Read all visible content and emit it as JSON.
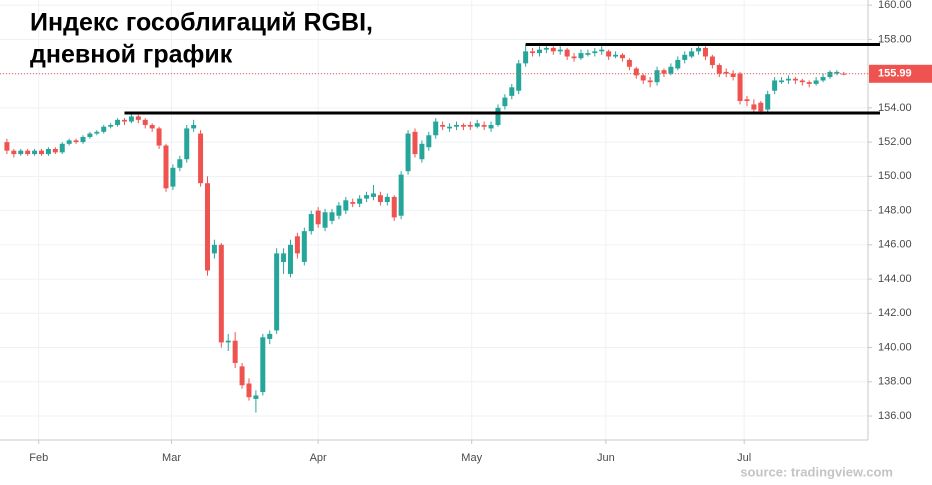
{
  "chart_data": {
    "type": "candlestick",
    "title_lines": [
      "Индекс гособлигаций RGBI,",
      "дневной график"
    ],
    "source": "source: tradingview.com",
    "up_color": "#26a69a",
    "down_color": "#ef5350",
    "open": [
      152.0,
      151.5,
      151.3,
      151.5,
      151.3,
      151.5,
      151.3,
      151.6,
      151.4,
      151.9,
      152.1,
      152.0,
      152.3,
      152.5,
      152.6,
      152.9,
      153.0,
      153.3,
      153.2,
      153.5,
      153.3,
      153.0,
      152.8,
      151.8,
      149.4,
      150.5,
      151.0,
      152.8,
      152.5,
      149.6,
      145.5,
      146.0,
      140.3,
      140.4,
      138.9,
      137.9,
      137.0,
      137.4,
      140.5,
      141.0,
      145.0,
      144.3,
      146.5,
      145.0,
      146.8,
      148.0,
      147.0,
      147.4,
      147.7,
      148.0,
      148.5,
      148.4,
      148.7,
      148.8,
      148.9,
      148.5,
      148.8,
      147.7,
      150.3,
      152.6,
      151.0,
      151.7,
      152.4,
      153.0,
      152.8,
      152.9,
      153.0,
      153.0,
      152.9,
      153.0,
      152.8,
      153.0,
      154.1,
      154.7,
      155.0,
      156.6,
      157.3,
      157.2,
      157.4,
      157.5,
      157.3,
      157.4,
      157.0,
      156.9,
      157.1,
      157.2,
      157.3,
      157.3,
      157.0,
      157.1,
      156.8,
      156.3,
      155.9,
      155.6,
      155.5,
      156.2,
      156.0,
      156.3,
      156.8,
      157.0,
      157.3,
      157.5,
      157.0,
      156.5,
      156.1,
      156.0,
      156.0,
      154.5,
      154.2,
      154.3,
      153.9,
      155.0,
      155.5,
      155.6,
      155.7,
      155.6,
      155.5,
      155.4,
      155.6,
      155.8,
      156.0,
      156.0
    ],
    "high": [
      152.2,
      151.6,
      151.6,
      151.6,
      151.6,
      151.6,
      151.7,
      151.7,
      152.0,
      152.2,
      152.2,
      152.4,
      152.6,
      152.7,
      153.0,
      153.1,
      153.4,
      153.4,
      153.7,
      153.6,
      153.4,
      153.1,
      152.9,
      151.9,
      150.7,
      151.2,
      153.0,
      153.3,
      152.7,
      150.0,
      146.3,
      146.1,
      140.8,
      140.9,
      139.1,
      138.2,
      137.5,
      140.8,
      141.0,
      145.8,
      145.8,
      146.3,
      146.7,
      147.0,
      148.0,
      148.2,
      148.1,
      148.1,
      148.5,
      148.8,
      148.7,
      148.9,
      149.1,
      149.5,
      149.1,
      149.0,
      148.9,
      150.3,
      152.7,
      152.8,
      152.1,
      152.6,
      153.4,
      153.2,
      153.1,
      153.2,
      153.1,
      153.2,
      153.3,
      153.2,
      153.2,
      154.2,
      154.8,
      155.4,
      156.8,
      157.7,
      157.5,
      157.6,
      157.7,
      157.6,
      157.6,
      157.5,
      157.2,
      157.4,
      157.4,
      157.5,
      157.6,
      157.4,
      157.3,
      157.2,
      156.9,
      156.4,
      156.0,
      155.8,
      156.4,
      156.3,
      156.6,
      157.0,
      157.3,
      157.5,
      157.7,
      157.6,
      157.1,
      156.6,
      156.3,
      156.2,
      156.1,
      154.7,
      154.5,
      154.4,
      155.0,
      155.8,
      155.8,
      155.9,
      155.8,
      155.7,
      155.6,
      155.8,
      156.0,
      156.2,
      156.2,
      156.1
    ],
    "low": [
      151.3,
      151.1,
      151.2,
      151.2,
      151.2,
      151.2,
      151.2,
      151.3,
      151.3,
      151.8,
      151.9,
      151.9,
      152.2,
      152.4,
      152.5,
      152.8,
      152.9,
      153.0,
      153.1,
      153.1,
      152.8,
      152.6,
      151.6,
      149.1,
      149.2,
      150.3,
      150.8,
      152.6,
      149.4,
      144.2,
      145.2,
      140.0,
      139.8,
      138.8,
      137.6,
      136.9,
      136.2,
      137.2,
      140.2,
      140.8,
      144.3,
      144.1,
      145.2,
      144.8,
      146.6,
      147.0,
      146.8,
      147.2,
      147.5,
      147.8,
      148.2,
      148.2,
      148.5,
      148.6,
      148.3,
      148.3,
      147.4,
      147.5,
      150.1,
      151.1,
      150.8,
      151.5,
      152.2,
      152.7,
      152.6,
      152.7,
      152.7,
      152.7,
      152.8,
      152.7,
      152.6,
      152.9,
      153.9,
      154.5,
      154.8,
      156.4,
      157.0,
      157.0,
      157.2,
      157.1,
      157.1,
      156.8,
      156.7,
      156.8,
      157.0,
      157.0,
      157.1,
      156.8,
      156.9,
      156.7,
      156.2,
      155.7,
      155.4,
      155.2,
      155.3,
      155.8,
      155.9,
      156.2,
      156.6,
      156.9,
      157.1,
      156.8,
      156.3,
      155.8,
      155.8,
      155.6,
      154.2,
      154.1,
      153.7,
      153.6,
      153.7,
      154.8,
      155.4,
      155.4,
      155.4,
      155.3,
      155.2,
      155.3,
      155.5,
      155.7,
      155.9,
      155.9
    ],
    "close": [
      151.5,
      151.3,
      151.5,
      151.3,
      151.5,
      151.3,
      151.6,
      151.4,
      151.9,
      152.1,
      152.0,
      152.3,
      152.5,
      152.6,
      152.9,
      153.0,
      153.3,
      153.2,
      153.5,
      153.3,
      153.0,
      152.8,
      151.8,
      149.3,
      150.5,
      151.0,
      152.8,
      153.0,
      149.6,
      144.5,
      146.0,
      140.3,
      140.4,
      139.1,
      137.8,
      137.1,
      137.2,
      140.6,
      140.8,
      145.5,
      145.5,
      146.0,
      145.5,
      146.8,
      147.8,
      147.2,
      147.9,
      147.9,
      148.3,
      148.6,
      148.4,
      148.7,
      148.9,
      149.0,
      148.5,
      148.8,
      147.6,
      150.1,
      152.5,
      151.3,
      151.9,
      152.4,
      153.2,
      152.9,
      152.9,
      153.0,
      152.9,
      152.9,
      153.1,
      152.9,
      153.0,
      154.0,
      154.6,
      155.2,
      156.6,
      157.3,
      157.2,
      157.4,
      157.5,
      157.3,
      157.4,
      157.0,
      156.9,
      157.2,
      157.2,
      157.3,
      157.4,
      157.0,
      157.1,
      156.9,
      156.4,
      155.9,
      155.6,
      155.5,
      156.2,
      156.0,
      156.4,
      156.8,
      157.1,
      157.3,
      157.5,
      157.0,
      156.5,
      156.0,
      156.0,
      155.8,
      154.4,
      154.4,
      153.9,
      153.8,
      154.8,
      155.6,
      155.6,
      155.7,
      155.6,
      155.5,
      155.4,
      155.6,
      155.8,
      156.1,
      156.1,
      155.99
    ],
    "last_price": {
      "value": 155.99,
      "label": "155.99",
      "color": "#ef5350"
    },
    "levels": [
      {
        "value": 157.7,
        "start": 75
      },
      {
        "value": 153.7,
        "start": 17
      }
    ],
    "xlim": [
      -1,
      124.5
    ],
    "xticks": [
      {
        "value": 4.6,
        "label": "Feb"
      },
      {
        "value": 23.8,
        "label": "Mar"
      },
      {
        "value": 45,
        "label": "Apr"
      },
      {
        "value": 67.2,
        "label": "May"
      },
      {
        "value": 86.6,
        "label": "Jun"
      },
      {
        "value": 106.6,
        "label": "Jul"
      }
    ],
    "ylim": [
      134.6,
      160.3
    ],
    "yticks": [
      {
        "value": 136,
        "label": "136.00"
      },
      {
        "value": 138,
        "label": "138.00"
      },
      {
        "value": 140,
        "label": "140.00"
      },
      {
        "value": 142,
        "label": "142.00"
      },
      {
        "value": 144,
        "label": "144.00"
      },
      {
        "value": 146,
        "label": "146.00"
      },
      {
        "value": 148,
        "label": "148.00"
      },
      {
        "value": 150,
        "label": "150.00"
      },
      {
        "value": 152,
        "label": "152.00"
      },
      {
        "value": 154,
        "label": "154.00"
      },
      {
        "value": 156,
        "label": "156.00"
      },
      {
        "value": 158,
        "label": "158.00"
      },
      {
        "value": 160,
        "label": "160.00"
      }
    ],
    "grid": true
  }
}
